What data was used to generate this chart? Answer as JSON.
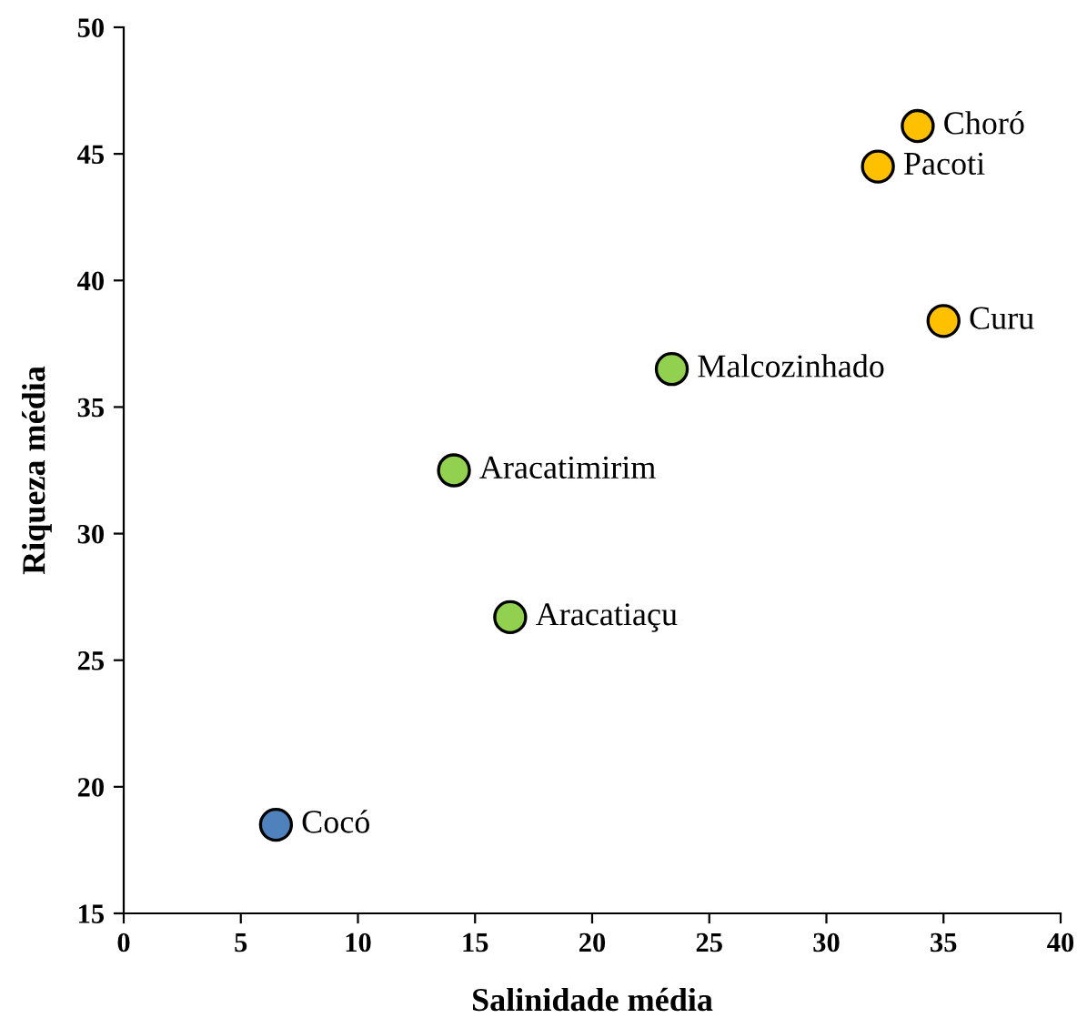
{
  "chart_data": {
    "type": "scatter",
    "xlabel": "Salinidade média",
    "ylabel": "Riqueza média",
    "x": [
      33.9,
      32.2,
      35.0,
      23.4,
      14.1,
      16.5,
      6.5
    ],
    "values": [
      46.1,
      44.5,
      38.4,
      36.5,
      32.5,
      26.7,
      18.5
    ],
    "colors": [
      "#ffc000",
      "#ffc000",
      "#ffc000",
      "#92d050",
      "#92d050",
      "#92d050",
      "#4f81bd"
    ],
    "marker": "circle",
    "annotations": [
      {
        "text": "Choró",
        "x": 33.9,
        "y": 46.1
      },
      {
        "text": "Pacoti",
        "x": 32.2,
        "y": 44.5
      },
      {
        "text": "Curu",
        "x": 35.0,
        "y": 38.4
      },
      {
        "text": "Malcozinhado",
        "x": 23.4,
        "y": 36.5
      },
      {
        "text": "Aracatimirim",
        "x": 14.1,
        "y": 32.5
      },
      {
        "text": "Aracatiaçu",
        "x": 16.5,
        "y": 26.7
      },
      {
        "text": "Cocó",
        "x": 6.5,
        "y": 18.5
      }
    ],
    "xlim": [
      0,
      40
    ],
    "xticks": [
      0,
      5,
      10,
      15,
      20,
      25,
      30,
      35,
      40
    ],
    "ylim": [
      15,
      50
    ],
    "yticks": [
      15,
      20,
      25,
      30,
      35,
      40,
      45,
      50
    ],
    "grid": false
  }
}
